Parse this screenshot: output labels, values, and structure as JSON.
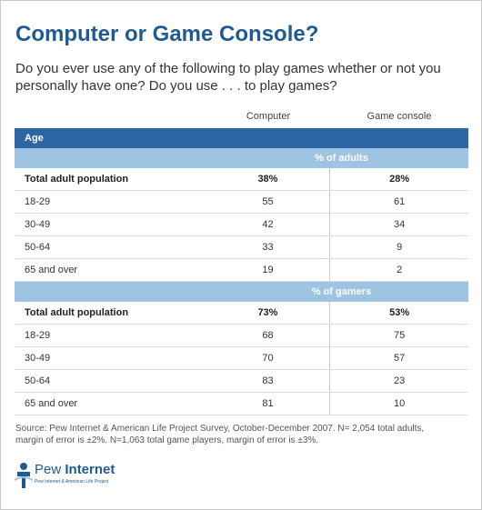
{
  "title": "Computer or Game Console?",
  "subtitle": "Do you ever use any of the following to play games whether or not you personally have one? Do you use . . . to play games?",
  "columns": [
    "Computer",
    "Game console"
  ],
  "section_header": "Age",
  "source": "Source:  Pew Internet & American Life Project Survey, October-December 2007. N= 2,054 total adults, margin of error is ±2%. N=1,063 total game players, margin of error is ±3%.",
  "logo": {
    "name_light": "Pew ",
    "name_bold": "Internet",
    "tagline": "Pew Internet & American Life Project"
  },
  "colors": {
    "title": "#1f5a93",
    "header_band": "#2d67a3",
    "sub_band": "#9fc3e3"
  },
  "chart_data": {
    "type": "table",
    "columns": [
      "Computer",
      "Game console"
    ],
    "groups": [
      {
        "band": "% of adults",
        "rows": [
          {
            "label": "Total adult population",
            "values": [
              "38%",
              "28%"
            ],
            "total": true
          },
          {
            "label": "18-29",
            "values": [
              "55",
              "61"
            ]
          },
          {
            "label": "30-49",
            "values": [
              "42",
              "34"
            ]
          },
          {
            "label": "50-64",
            "values": [
              "33",
              "9"
            ]
          },
          {
            "label": "65 and over",
            "values": [
              "19",
              "2"
            ]
          }
        ]
      },
      {
        "band": "% of gamers",
        "rows": [
          {
            "label": "Total adult population",
            "values": [
              "73%",
              "53%"
            ],
            "total": true
          },
          {
            "label": "18-29",
            "values": [
              "68",
              "75"
            ]
          },
          {
            "label": "30-49",
            "values": [
              "70",
              "57"
            ]
          },
          {
            "label": "50-64",
            "values": [
              "83",
              "23"
            ]
          },
          {
            "label": "65 and over",
            "values": [
              "81",
              "10"
            ]
          }
        ]
      }
    ]
  }
}
